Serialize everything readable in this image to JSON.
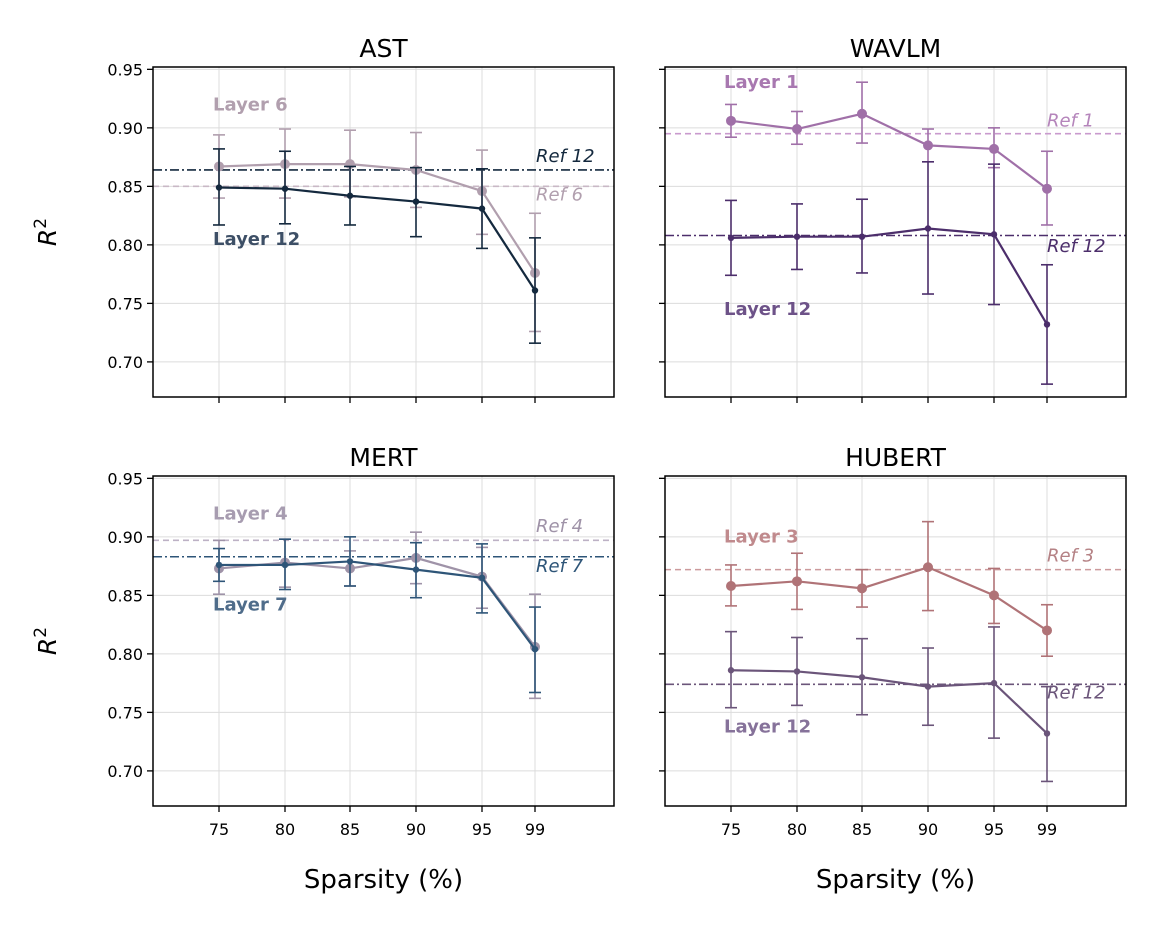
{
  "chart_data": [
    {
      "type": "line",
      "title": "AST",
      "xlabel": "",
      "ylabel": "R",
      "ylabel_sup": "2",
      "x_tick_labels": [
        "75",
        "80",
        "85",
        "90",
        "95",
        "99"
      ],
      "y_tick_labels": [
        "0.95",
        "0.90",
        "0.85",
        "0.80",
        "0.75",
        "0.70"
      ],
      "ylim": [
        0.67,
        0.952
      ],
      "grid": true,
      "series": [
        {
          "name": "Layer 6",
          "color": "#b19fae",
          "marker_size": "large",
          "x": [
            "75",
            "80",
            "85",
            "90",
            "95",
            "99"
          ],
          "values": [
            0.867,
            0.869,
            0.869,
            0.864,
            0.846,
            0.776
          ],
          "err_low": [
            0.84,
            0.84,
            0.841,
            0.832,
            0.809,
            0.726
          ],
          "err_high": [
            0.894,
            0.899,
            0.898,
            0.896,
            0.881,
            0.827
          ]
        },
        {
          "name": "Layer 12",
          "color": "#14293e",
          "marker_size": "small",
          "x": [
            "75",
            "80",
            "85",
            "90",
            "95",
            "99"
          ],
          "values": [
            0.849,
            0.848,
            0.842,
            0.837,
            0.831,
            0.761
          ],
          "err_low": [
            0.817,
            0.818,
            0.817,
            0.807,
            0.797,
            0.716
          ],
          "err_high": [
            0.882,
            0.88,
            0.867,
            0.866,
            0.865,
            0.806
          ]
        }
      ],
      "reference_lines": [
        {
          "name": "Ref 12",
          "value": 0.864,
          "color": "#14293e",
          "style": "dashdot"
        },
        {
          "name": "Ref 6",
          "value": 0.85,
          "color": "#c9b8c6",
          "style": "dashed"
        }
      ],
      "annotations": [
        {
          "text": "Layer 6",
          "color": "#b19fae"
        },
        {
          "text": "Layer 12",
          "color": "#3d4f66"
        },
        {
          "text": "Ref 12",
          "color": "#14293e"
        },
        {
          "text": "Ref 6",
          "color": "#b19fae"
        }
      ]
    },
    {
      "type": "line",
      "title": "WAVLM",
      "xlabel": "",
      "ylabel": "",
      "x_tick_labels": [
        "75",
        "80",
        "85",
        "90",
        "95",
        "99"
      ],
      "ylim": [
        0.67,
        0.952
      ],
      "grid": true,
      "series": [
        {
          "name": "Layer 1",
          "color": "#a070a8",
          "marker_size": "large",
          "x": [
            "75",
            "80",
            "85",
            "90",
            "95",
            "99"
          ],
          "values": [
            0.906,
            0.899,
            0.912,
            0.885,
            0.882,
            0.848
          ],
          "err_low": [
            0.892,
            0.886,
            0.887,
            0.871,
            0.866,
            0.817
          ],
          "err_high": [
            0.92,
            0.914,
            0.939,
            0.899,
            0.9,
            0.88
          ]
        },
        {
          "name": "Layer 12",
          "color": "#4c2e6b",
          "marker_size": "small",
          "x": [
            "75",
            "80",
            "85",
            "90",
            "95",
            "99"
          ],
          "values": [
            0.806,
            0.807,
            0.807,
            0.814,
            0.809,
            0.732
          ],
          "err_low": [
            0.774,
            0.779,
            0.776,
            0.758,
            0.749,
            0.681
          ],
          "err_high": [
            0.838,
            0.835,
            0.839,
            0.871,
            0.869,
            0.783
          ]
        }
      ],
      "reference_lines": [
        {
          "name": "Ref 1",
          "value": 0.895,
          "color": "#c99acd",
          "style": "dashed"
        },
        {
          "name": "Ref 12",
          "value": 0.808,
          "color": "#4c2e6b",
          "style": "dashdot"
        }
      ],
      "annotations": [
        {
          "text": "Layer 1",
          "color": "#a878b0"
        },
        {
          "text": "Layer 12",
          "color": "#6d5288"
        },
        {
          "text": "Ref 1",
          "color": "#b585bb"
        },
        {
          "text": "Ref 12",
          "color": "#4c2e6b"
        }
      ]
    },
    {
      "type": "line",
      "title": "MERT",
      "xlabel": "Sparsity (%)",
      "ylabel": "R",
      "ylabel_sup": "2",
      "x_tick_labels": [
        "75",
        "80",
        "85",
        "90",
        "95",
        "99"
      ],
      "y_tick_labels": [
        "0.95",
        "0.90",
        "0.85",
        "0.80",
        "0.75",
        "0.70"
      ],
      "ylim": [
        0.67,
        0.952
      ],
      "grid": true,
      "series": [
        {
          "name": "Layer 4",
          "color": "#9f93a8",
          "marker_size": "large",
          "x": [
            "75",
            "80",
            "85",
            "90",
            "95",
            "99"
          ],
          "values": [
            0.873,
            0.878,
            0.873,
            0.882,
            0.866,
            0.806
          ],
          "err_low": [
            0.851,
            0.857,
            0.858,
            0.86,
            0.839,
            0.762
          ],
          "err_high": [
            0.897,
            0.898,
            0.888,
            0.904,
            0.891,
            0.851
          ]
        },
        {
          "name": "Layer 7",
          "color": "#2e5578",
          "marker_size": "small",
          "x": [
            "75",
            "80",
            "85",
            "90",
            "95",
            "99"
          ],
          "values": [
            0.876,
            0.876,
            0.879,
            0.872,
            0.865,
            0.804
          ],
          "err_low": [
            0.862,
            0.855,
            0.858,
            0.848,
            0.835,
            0.767
          ],
          "err_high": [
            0.89,
            0.898,
            0.9,
            0.895,
            0.894,
            0.84
          ]
        }
      ],
      "reference_lines": [
        {
          "name": "Ref 4",
          "value": 0.897,
          "color": "#bdb1c5",
          "style": "dashed"
        },
        {
          "name": "Ref 7",
          "value": 0.883,
          "color": "#2e5578",
          "style": "dashdot"
        }
      ],
      "annotations": [
        {
          "text": "Layer 4",
          "color": "#a79cb0"
        },
        {
          "text": "Layer 7",
          "color": "#4f6c8a"
        },
        {
          "text": "Ref 4",
          "color": "#9f93a8"
        },
        {
          "text": "Ref 7",
          "color": "#2e5578"
        }
      ]
    },
    {
      "type": "line",
      "title": "HUBERT",
      "xlabel": "Sparsity (%)",
      "ylabel": "",
      "x_tick_labels": [
        "75",
        "80",
        "85",
        "90",
        "95",
        "99"
      ],
      "ylim": [
        0.67,
        0.952
      ],
      "grid": true,
      "series": [
        {
          "name": "Layer 3",
          "color": "#b07377",
          "marker_size": "large",
          "x": [
            "75",
            "80",
            "85",
            "90",
            "95",
            "99"
          ],
          "values": [
            0.858,
            0.862,
            0.856,
            0.874,
            0.85,
            0.82
          ],
          "err_low": [
            0.841,
            0.838,
            0.84,
            0.837,
            0.826,
            0.798
          ],
          "err_high": [
            0.876,
            0.886,
            0.872,
            0.913,
            0.873,
            0.842
          ]
        },
        {
          "name": "Layer 12",
          "color": "#6b557a",
          "marker_size": "small",
          "x": [
            "75",
            "80",
            "85",
            "90",
            "95",
            "99"
          ],
          "values": [
            0.786,
            0.785,
            0.78,
            0.772,
            0.775,
            0.732
          ],
          "err_low": [
            0.754,
            0.756,
            0.748,
            0.739,
            0.728,
            0.691
          ],
          "err_high": [
            0.819,
            0.814,
            0.813,
            0.805,
            0.823,
            0.772
          ]
        }
      ],
      "reference_lines": [
        {
          "name": "Ref 3",
          "value": 0.872,
          "color": "#cc9a9c",
          "style": "dashed"
        },
        {
          "name": "Ref 12",
          "value": 0.774,
          "color": "#6b557a",
          "style": "dashdot"
        }
      ],
      "annotations": [
        {
          "text": "Layer 3",
          "color": "#c08a8d"
        },
        {
          "text": "Layer 12",
          "color": "#86729a"
        },
        {
          "text": "Ref 3",
          "color": "#b58285"
        },
        {
          "text": "Ref 12",
          "color": "#6b557a"
        }
      ]
    }
  ]
}
